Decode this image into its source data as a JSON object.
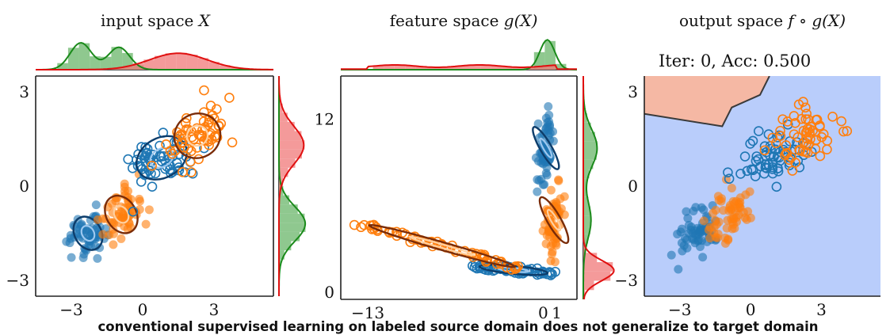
{
  "caption": "conventional supervised learning on labeled source domain does not generalize to target domain",
  "colors": {
    "source_hist": "#6ab56a",
    "source_kde": "#1a8a1a",
    "target_hist": "#f07878",
    "target_kde": "#e01010",
    "class0": "#1f77b4",
    "class1": "#ff7f0e",
    "region0": "#b9cdfb",
    "region1": "#f5b8a4",
    "boundary": "#3a3a3a"
  },
  "chart_data": [
    {
      "type": "scatter",
      "title": "input space X",
      "title_prefix": "input space ",
      "title_var": "X",
      "xlim": [
        -4.5,
        5.5
      ],
      "ylim": [
        -3.5,
        3.5
      ],
      "xticks": [
        -3,
        0,
        3
      ],
      "yticks": [
        -3,
        0,
        3
      ],
      "xtick_labels": [
        "−3",
        "0",
        "3"
      ],
      "ytick_labels": [
        "−3",
        "0",
        "3"
      ],
      "grid": false,
      "series": [
        {
          "role": "source class 0 (filled)",
          "color": "#1f77b4",
          "center": [
            -2.3,
            -1.5
          ],
          "spread": [
            0.4,
            0.4
          ]
        },
        {
          "role": "source class 1 (filled)",
          "color": "#ff7f0e",
          "center": [
            -0.9,
            -0.9
          ],
          "spread": [
            0.45,
            0.45
          ]
        },
        {
          "role": "target class 0 (hollow)",
          "color": "#1f77b4",
          "center": [
            0.8,
            0.9
          ],
          "spread": [
            0.8,
            0.45
          ]
        },
        {
          "role": "target class 1 (hollow)",
          "color": "#ff7f0e",
          "center": [
            2.3,
            1.6
          ],
          "spread": [
            0.7,
            0.5
          ]
        }
      ],
      "marginal_x": {
        "source_peaks": [
          -2.6,
          -1.0
        ],
        "target_peak": 1.5
      },
      "marginal_y": {
        "source_peak": -1.2,
        "target_peak": 1.3
      }
    },
    {
      "type": "scatter",
      "title": "feature space g(X)",
      "title_prefix": "feature space ",
      "title_var": "g(X)",
      "xlim": [
        -15,
        2.5
      ],
      "ylim": [
        -0.5,
        15
      ],
      "xticks": [
        -13,
        0,
        1
      ],
      "yticks": [
        0,
        12
      ],
      "xtick_labels": [
        "−13",
        "0",
        "1"
      ],
      "ytick_labels": [
        "0",
        "12"
      ],
      "grid": false,
      "series": [
        {
          "role": "source class 0 (filled)",
          "color": "#1f77b4",
          "center": [
            0.2,
            10.0
          ],
          "spread": [
            0.3,
            1.2
          ]
        },
        {
          "role": "source class 1 (filled)",
          "color": "#ff7f0e",
          "center": [
            0.8,
            5.0
          ],
          "spread": [
            0.35,
            1.3
          ]
        },
        {
          "role": "target class 0 (hollow)",
          "color": "#1f77b4",
          "from": [
            -5,
            1.8
          ],
          "to": [
            0.6,
            1.3
          ]
        },
        {
          "role": "target class 1 (hollow)",
          "color": "#ff7f0e",
          "from": [
            -13.5,
            4.8
          ],
          "to": [
            -1.5,
            1.6
          ]
        }
      ],
      "marginal_x": {
        "source_peak": 0.3,
        "target_range": [
          -13,
          1
        ]
      },
      "marginal_y": {
        "source_peak": 10,
        "target_peak": 1.5
      }
    },
    {
      "type": "scatter",
      "title": "output space f∘g(X)",
      "title_prefix": "output space ",
      "title_var": "f ∘ g(X)",
      "annotation": "Iter: 0, Acc: 0.500",
      "xlim": [
        -4.5,
        5.5
      ],
      "ylim": [
        -3.5,
        3.5
      ],
      "xticks": [
        -3,
        0,
        3
      ],
      "yticks": [
        -3,
        0,
        3
      ],
      "xtick_labels": [
        "−3",
        "0",
        "3"
      ],
      "ytick_labels": [
        "−3",
        "0",
        "3"
      ],
      "grid": false,
      "decision_boundary": [
        [
          -4.5,
          2.3
        ],
        [
          -1.2,
          1.9
        ],
        [
          -0.8,
          2.5
        ],
        [
          0.4,
          2.9
        ],
        [
          0.8,
          3.5
        ]
      ],
      "regions": {
        "upper_left": "class 1",
        "rest": "class 0"
      },
      "series": [
        {
          "role": "source class 0 (filled)",
          "color": "#1f77b4",
          "center": [
            -2.3,
            -1.5
          ],
          "spread": [
            0.4,
            0.4
          ]
        },
        {
          "role": "source class 1 (filled)",
          "color": "#ff7f0e",
          "center": [
            -0.9,
            -0.9
          ],
          "spread": [
            0.45,
            0.45
          ]
        },
        {
          "role": "target class 0 (hollow)",
          "color": "#1f77b4",
          "center": [
            0.8,
            0.9
          ],
          "spread": [
            0.8,
            0.45
          ]
        },
        {
          "role": "target class 1 (hollow)",
          "color": "#ff7f0e",
          "center": [
            2.3,
            1.6
          ],
          "spread": [
            0.7,
            0.5
          ]
        }
      ]
    }
  ]
}
